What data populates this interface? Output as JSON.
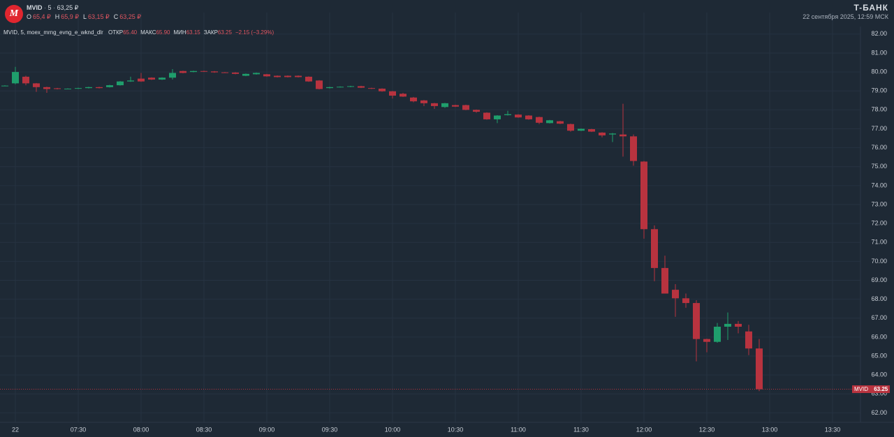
{
  "header": {
    "logo": "М",
    "symbol": "MVID",
    "interval": "5",
    "price": "63,25 ₽",
    "ohlc": [
      {
        "key": "O",
        "value": "65,4 ₽"
      },
      {
        "key": "H",
        "value": "65,9 ₽"
      },
      {
        "key": "L",
        "value": "63,15 ₽"
      },
      {
        "key": "C",
        "value": "63,25 ₽"
      }
    ],
    "brand": "T-БАНК",
    "datetime": "22 сентября 2025, 12:59 МСК"
  },
  "legend": {
    "study": "MVID, 5, moex_mrng_evng_e_wknd_dlr",
    "fields": [
      {
        "key": "ОТКР",
        "value": "65.40"
      },
      {
        "key": "МАКС",
        "value": "65.90"
      },
      {
        "key": "МИН",
        "value": "63.15"
      },
      {
        "key": "ЗАКР",
        "value": "63.25"
      }
    ],
    "change": "−2.15 (−3.29%)"
  },
  "price_tag": {
    "name": "MVID",
    "value": "63.25"
  },
  "chart_data": {
    "type": "candlestick",
    "up_color": "#1f9e6c",
    "down_color": "#b8333f",
    "grid": true,
    "categories": [
      null,
      "22",
      null,
      null,
      null,
      null,
      null,
      "07:30",
      null,
      null,
      null,
      null,
      null,
      "08:00",
      null,
      null,
      null,
      null,
      null,
      "08:30",
      null,
      null,
      null,
      null,
      null,
      "09:00",
      null,
      null,
      null,
      null,
      null,
      "09:30",
      null,
      null,
      null,
      null,
      null,
      "10:00",
      null,
      null,
      null,
      null,
      null,
      "10:30",
      null,
      null,
      null,
      null,
      null,
      "11:00",
      null,
      null,
      null,
      null,
      null,
      "11:30",
      null,
      null,
      null,
      null,
      null,
      "12:00",
      null,
      null,
      null,
      null,
      null,
      "12:30",
      null,
      null,
      null,
      null,
      null,
      "13:00",
      null,
      null,
      null,
      null,
      null,
      "13:30"
    ],
    "open": [
      79.28,
      79.4,
      79.75,
      79.4,
      79.2,
      79.14,
      79.12,
      79.12,
      79.15,
      79.2,
      79.2,
      79.3,
      79.5,
      79.65,
      79.7,
      79.6,
      79.7,
      80.05,
      80.0,
      80.05,
      80.03,
      79.98,
      79.97,
      79.8,
      79.88,
      79.88,
      79.8,
      79.8,
      79.8,
      79.75,
      79.55,
      79.15,
      79.2,
      79.22,
      79.25,
      79.15,
      79.12,
      78.98,
      78.85,
      78.65,
      78.5,
      78.35,
      78.15,
      78.25,
      78.25,
      78.0,
      77.85,
      77.5,
      77.72,
      77.75,
      77.7,
      77.62,
      77.3,
      77.4,
      77.25,
      76.9,
      76.98,
      76.8,
      76.7,
      76.7,
      76.6,
      75.27,
      71.7,
      69.65,
      68.5,
      68.05,
      67.8,
      65.9,
      65.75,
      66.55,
      66.7,
      66.3,
      65.4,
      null,
      null,
      null,
      null,
      null,
      null,
      null
    ],
    "high": [
      79.3,
      80.27,
      79.8,
      79.42,
      79.22,
      79.16,
      79.14,
      79.17,
      79.22,
      79.22,
      79.32,
      79.52,
      79.75,
      79.95,
      79.72,
      79.72,
      80.15,
      80.07,
      80.07,
      80.07,
      80.05,
      80.0,
      79.99,
      79.92,
      79.97,
      79.9,
      79.82,
      79.82,
      79.82,
      79.77,
      79.57,
      79.22,
      79.24,
      79.27,
      79.27,
      79.17,
      79.14,
      79.0,
      78.9,
      78.68,
      78.52,
      78.37,
      78.37,
      78.27,
      78.27,
      78.02,
      77.87,
      77.72,
      77.95,
      77.77,
      77.72,
      77.64,
      77.47,
      77.42,
      77.27,
      77.02,
      77.0,
      76.82,
      76.78,
      78.32,
      76.7,
      75.3,
      71.9,
      70.3,
      68.8,
      68.3,
      67.95,
      65.92,
      66.75,
      67.3,
      66.85,
      66.65,
      65.9,
      null,
      null,
      null,
      null,
      null,
      null,
      null
    ],
    "low": [
      79.26,
      79.35,
      79.3,
      78.95,
      78.9,
      79.08,
      79.1,
      79.1,
      79.13,
      79.13,
      79.18,
      79.28,
      79.48,
      79.48,
      79.58,
      79.58,
      79.6,
      79.93,
      79.98,
      80.0,
      79.96,
      79.95,
      79.88,
      79.78,
      79.86,
      79.75,
      79.71,
      79.71,
      79.71,
      79.48,
      79.08,
      79.13,
      79.18,
      79.2,
      79.15,
      79.1,
      78.96,
      78.6,
      78.68,
      78.4,
      78.2,
      78.05,
      78.1,
      78.15,
      77.98,
      77.85,
      77.48,
      77.3,
      77.7,
      77.58,
      77.48,
      77.25,
      77.28,
      77.25,
      76.85,
      76.88,
      76.83,
      76.55,
      76.3,
      75.53,
      75.05,
      71.2,
      68.95,
      68.3,
      67.07,
      67.55,
      64.72,
      65.2,
      65.7,
      65.85,
      66.2,
      65.05,
      63.15,
      null,
      null,
      null,
      null,
      null,
      null,
      null
    ],
    "close": [
      79.28,
      80.0,
      79.4,
      79.2,
      79.1,
      79.1,
      79.12,
      79.15,
      79.2,
      79.15,
      79.3,
      79.5,
      79.55,
      79.5,
      79.6,
      79.7,
      79.95,
      79.95,
      80.05,
      80.03,
      79.98,
      79.97,
      79.9,
      79.9,
      79.95,
      79.77,
      79.73,
      79.73,
      79.73,
      79.5,
      79.1,
      79.2,
      79.22,
      79.25,
      79.17,
      79.12,
      78.98,
      78.75,
      78.7,
      78.45,
      78.35,
      78.2,
      78.35,
      78.17,
      78.0,
      77.9,
      77.5,
      77.7,
      77.77,
      77.6,
      77.5,
      77.32,
      77.45,
      77.27,
      76.9,
      77.0,
      76.85,
      76.65,
      76.75,
      76.6,
      75.3,
      71.7,
      69.65,
      68.3,
      68.05,
      67.8,
      65.9,
      65.75,
      66.55,
      66.7,
      66.55,
      65.4,
      63.25,
      null,
      null,
      null,
      null,
      null,
      null,
      null
    ],
    "ylim": [
      61.5,
      82.4
    ],
    "yticks": [
      {
        "value": 62,
        "label": "62.00"
      },
      {
        "value": 63,
        "label": "63.00"
      },
      {
        "value": 64,
        "label": "64.00"
      },
      {
        "value": 65,
        "label": "65.00"
      },
      {
        "value": 66,
        "label": "66.00"
      },
      {
        "value": 67,
        "label": "67.00"
      },
      {
        "value": 68,
        "label": "68.00"
      },
      {
        "value": 69,
        "label": "69.00"
      },
      {
        "value": 70,
        "label": "70.00"
      },
      {
        "value": 71,
        "label": "71.00"
      },
      {
        "value": 72,
        "label": "72.00"
      },
      {
        "value": 73,
        "label": "73.00"
      },
      {
        "value": 74,
        "label": "74.00"
      },
      {
        "value": 75,
        "label": "75.00"
      },
      {
        "value": 76,
        "label": "76.00"
      },
      {
        "value": 77,
        "label": "77.00"
      },
      {
        "value": 78,
        "label": "78.00"
      },
      {
        "value": 79,
        "label": "79.00"
      },
      {
        "value": 80,
        "label": "80.00"
      },
      {
        "value": 81,
        "label": "81.00"
      },
      {
        "value": 82,
        "label": "82.00"
      }
    ]
  }
}
